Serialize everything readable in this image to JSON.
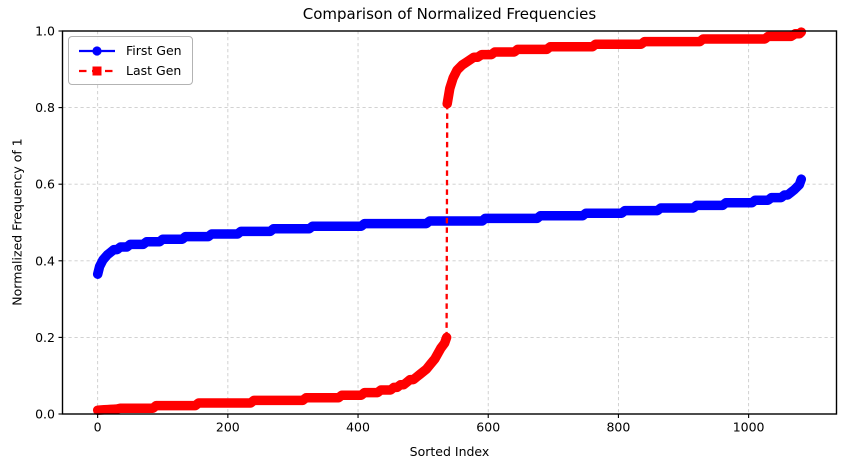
{
  "chart_data": {
    "type": "line",
    "title": "Comparison of Normalized Frequencies",
    "xlabel": "Sorted Index",
    "ylabel": "Normalized Frequency of 1",
    "xlim": [
      -54,
      1135
    ],
    "ylim": [
      0.0,
      1.0
    ],
    "xticks": [
      0,
      200,
      400,
      600,
      800,
      1000
    ],
    "yticks": [
      0.0,
      0.2,
      0.4,
      0.6,
      0.8,
      1.0
    ],
    "ytick_labels": [
      "0.0",
      "0.2",
      "0.4",
      "0.6",
      "0.8",
      "1.0"
    ],
    "grid": true,
    "grid_style": "dashed",
    "grid_color": "#cccccc",
    "legend_position": "upper left",
    "series": [
      {
        "name": "First Gen",
        "color": "#0000ff",
        "linestyle": "solid",
        "marker": "circle",
        "points": [
          [
            0,
            0.365
          ],
          [
            3,
            0.385
          ],
          [
            8,
            0.405
          ],
          [
            15,
            0.418
          ],
          [
            25,
            0.428
          ],
          [
            50,
            0.441
          ],
          [
            100,
            0.454
          ],
          [
            150,
            0.463
          ],
          [
            200,
            0.471
          ],
          [
            250,
            0.478
          ],
          [
            300,
            0.484
          ],
          [
            350,
            0.489
          ],
          [
            400,
            0.493
          ],
          [
            450,
            0.497
          ],
          [
            500,
            0.5
          ],
          [
            540,
            0.503
          ],
          [
            600,
            0.508
          ],
          [
            650,
            0.512
          ],
          [
            700,
            0.516
          ],
          [
            750,
            0.521
          ],
          [
            800,
            0.527
          ],
          [
            850,
            0.533
          ],
          [
            900,
            0.539
          ],
          [
            950,
            0.546
          ],
          [
            1000,
            0.553
          ],
          [
            1030,
            0.56
          ],
          [
            1055,
            0.57
          ],
          [
            1070,
            0.582
          ],
          [
            1078,
            0.597
          ],
          [
            1081,
            0.613
          ]
        ]
      },
      {
        "name": "Last Gen",
        "color": "#ff0000",
        "linestyle": "dashed",
        "marker": "square",
        "points": [
          [
            0,
            0.01
          ],
          [
            30,
            0.013
          ],
          [
            60,
            0.016
          ],
          [
            100,
            0.02
          ],
          [
            150,
            0.025
          ],
          [
            200,
            0.029
          ],
          [
            250,
            0.033
          ],
          [
            300,
            0.037
          ],
          [
            350,
            0.042
          ],
          [
            390,
            0.048
          ],
          [
            420,
            0.055
          ],
          [
            450,
            0.065
          ],
          [
            470,
            0.078
          ],
          [
            490,
            0.098
          ],
          [
            505,
            0.12
          ],
          [
            518,
            0.145
          ],
          [
            527,
            0.168
          ],
          [
            533,
            0.185
          ],
          [
            536,
            0.2
          ],
          [
            537,
            0.81
          ],
          [
            541,
            0.85
          ],
          [
            546,
            0.878
          ],
          [
            552,
            0.898
          ],
          [
            560,
            0.913
          ],
          [
            572,
            0.925
          ],
          [
            590,
            0.936
          ],
          [
            620,
            0.945
          ],
          [
            660,
            0.951
          ],
          [
            700,
            0.956
          ],
          [
            750,
            0.961
          ],
          [
            800,
            0.966
          ],
          [
            850,
            0.97
          ],
          [
            900,
            0.974
          ],
          [
            950,
            0.977
          ],
          [
            1000,
            0.98
          ],
          [
            1040,
            0.984
          ],
          [
            1065,
            0.988
          ],
          [
            1078,
            0.992
          ],
          [
            1081,
            0.997
          ]
        ]
      }
    ]
  }
}
